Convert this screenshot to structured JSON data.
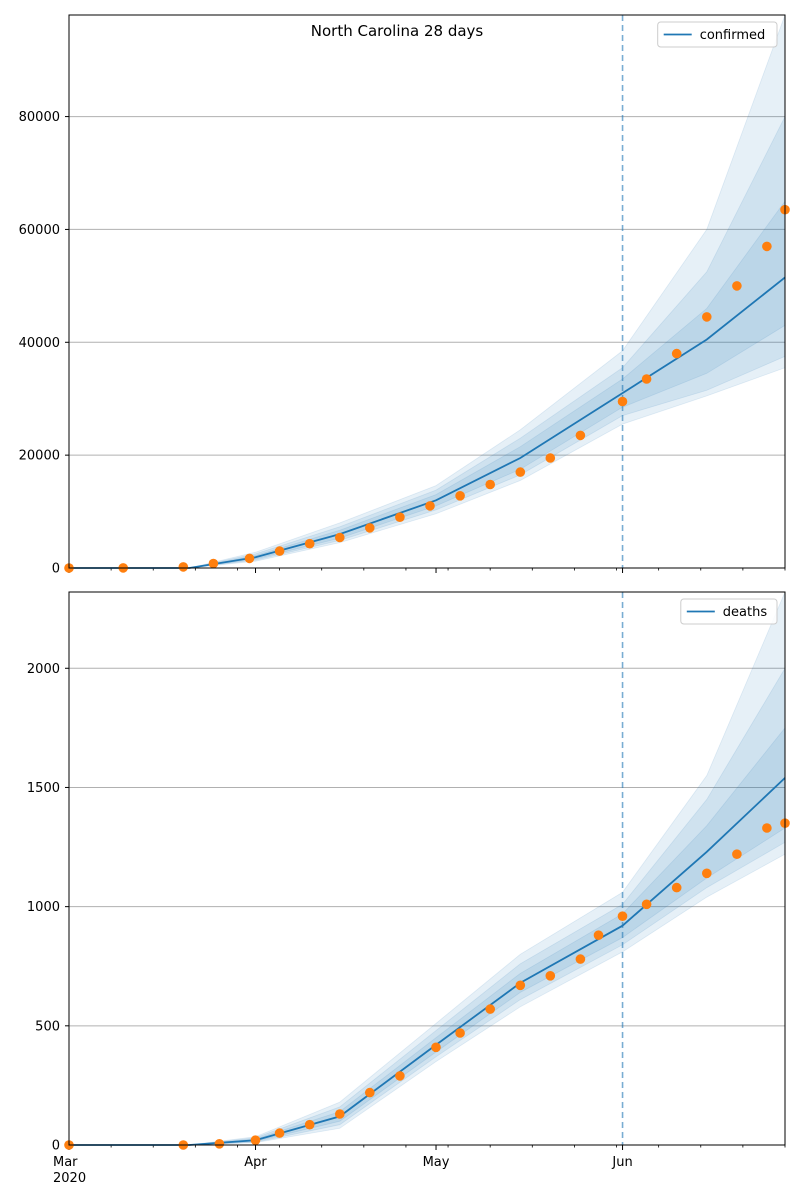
{
  "figure": {
    "title": "North Carolina 28 days"
  },
  "chart_data": [
    {
      "type": "line",
      "name": "confirmed",
      "legend": {
        "label": "confirmed",
        "position": "top-right"
      },
      "ylim": [
        0,
        98000
      ],
      "yticks": [
        0,
        20000,
        40000,
        60000,
        80000
      ],
      "grid": "y",
      "forecast_start": "2020-06-01",
      "series": [
        {
          "name": "confirmed",
          "role": "model-line",
          "x": [
            "2020-03-01",
            "2020-03-21",
            "2020-04-01",
            "2020-04-15",
            "2020-05-01",
            "2020-05-15",
            "2020-06-01",
            "2020-06-15",
            "2020-06-28"
          ],
          "y": [
            0,
            0,
            1900,
            6000,
            12000,
            19500,
            31000,
            40500,
            51500
          ],
          "bands": [
            {
              "level": "inner",
              "lower": [
                0,
                0,
                1600,
                5300,
                11000,
                17500,
                28500,
                34500,
                43000
              ],
              "upper": [
                0,
                0,
                2200,
                6700,
                13000,
                21500,
                33500,
                46000,
                65000
              ]
            },
            {
              "level": "middle",
              "lower": [
                0,
                0,
                1400,
                4900,
                10300,
                16500,
                27000,
                31500,
                37500
              ],
              "upper": [
                0,
                0,
                2500,
                7300,
                13800,
                23000,
                35500,
                52500,
                80000
              ]
            },
            {
              "level": "outer",
              "lower": [
                0,
                0,
                1200,
                4500,
                9600,
                15500,
                25500,
                30500,
                35500
              ],
              "upper": [
                0,
                0,
                2800,
                8000,
                14600,
                24500,
                38500,
                60000,
                98000
              ]
            }
          ]
        },
        {
          "name": "observed",
          "role": "points",
          "x": [
            "2020-03-01",
            "2020-03-10",
            "2020-03-20",
            "2020-03-25",
            "2020-03-31",
            "2020-04-05",
            "2020-04-10",
            "2020-04-15",
            "2020-04-20",
            "2020-04-25",
            "2020-04-30",
            "2020-05-05",
            "2020-05-10",
            "2020-05-15",
            "2020-05-20",
            "2020-05-25",
            "2020-06-01",
            "2020-06-05",
            "2020-06-10",
            "2020-06-15",
            "2020-06-20",
            "2020-06-25",
            "2020-06-28"
          ],
          "y": [
            0,
            20,
            200,
            800,
            1700,
            3000,
            4300,
            5400,
            7100,
            9000,
            11000,
            12800,
            14800,
            17000,
            19500,
            23500,
            29500,
            33500,
            38000,
            44500,
            50000,
            57000,
            63500
          ]
        }
      ]
    },
    {
      "type": "line",
      "name": "deaths",
      "legend": {
        "label": "deaths",
        "position": "top-right"
      },
      "ylim": [
        0,
        2320
      ],
      "yticks": [
        0,
        500,
        1000,
        1500,
        2000
      ],
      "grid": "y",
      "forecast_start": "2020-06-01",
      "xticks": [
        "Mar",
        "Apr",
        "May",
        "Jun"
      ],
      "xtick_year": "2020",
      "series": [
        {
          "name": "deaths",
          "role": "model-line",
          "x": [
            "2020-03-01",
            "2020-03-21",
            "2020-04-01",
            "2020-04-15",
            "2020-05-01",
            "2020-05-15",
            "2020-06-01",
            "2020-06-15",
            "2020-06-28"
          ],
          "y": [
            0,
            0,
            20,
            120,
            420,
            680,
            920,
            1230,
            1540
          ],
          "bands": [
            {
              "level": "inner",
              "lower": [
                0,
                0,
                15,
                100,
                390,
                640,
                870,
                1120,
                1330
              ],
              "upper": [
                0,
                0,
                25,
                140,
                450,
                720,
                970,
                1340,
                1750
              ]
            },
            {
              "level": "middle",
              "lower": [
                0,
                0,
                12,
                85,
                370,
                610,
                840,
                1080,
                1270
              ],
              "upper": [
                0,
                0,
                30,
                160,
                480,
                760,
                1010,
                1450,
                2000
              ]
            },
            {
              "level": "outer",
              "lower": [
                0,
                0,
                10,
                70,
                350,
                580,
                810,
                1040,
                1220
              ],
              "upper": [
                0,
                0,
                35,
                180,
                510,
                800,
                1060,
                1550,
                2320
              ]
            }
          ]
        },
        {
          "name": "observed",
          "role": "points",
          "x": [
            "2020-03-01",
            "2020-03-20",
            "2020-03-26",
            "2020-04-01",
            "2020-04-05",
            "2020-04-10",
            "2020-04-15",
            "2020-04-20",
            "2020-04-25",
            "2020-05-01",
            "2020-05-05",
            "2020-05-10",
            "2020-05-15",
            "2020-05-20",
            "2020-05-25",
            "2020-05-28",
            "2020-06-01",
            "2020-06-05",
            "2020-06-10",
            "2020-06-15",
            "2020-06-20",
            "2020-06-25",
            "2020-06-28"
          ],
          "y": [
            0,
            0,
            5,
            20,
            50,
            85,
            130,
            220,
            290,
            410,
            470,
            570,
            670,
            710,
            780,
            880,
            960,
            1010,
            1080,
            1140,
            1220,
            1330,
            1350
          ]
        }
      ]
    }
  ],
  "axis": {
    "x_start": "2020-03-01",
    "x_end": "2020-06-28",
    "colors": {
      "line": "#1f77b4",
      "points": "#ff7f0e",
      "band": "#1f77b4",
      "grid": "#b0b0b0",
      "vline": "#1f77b4"
    }
  }
}
